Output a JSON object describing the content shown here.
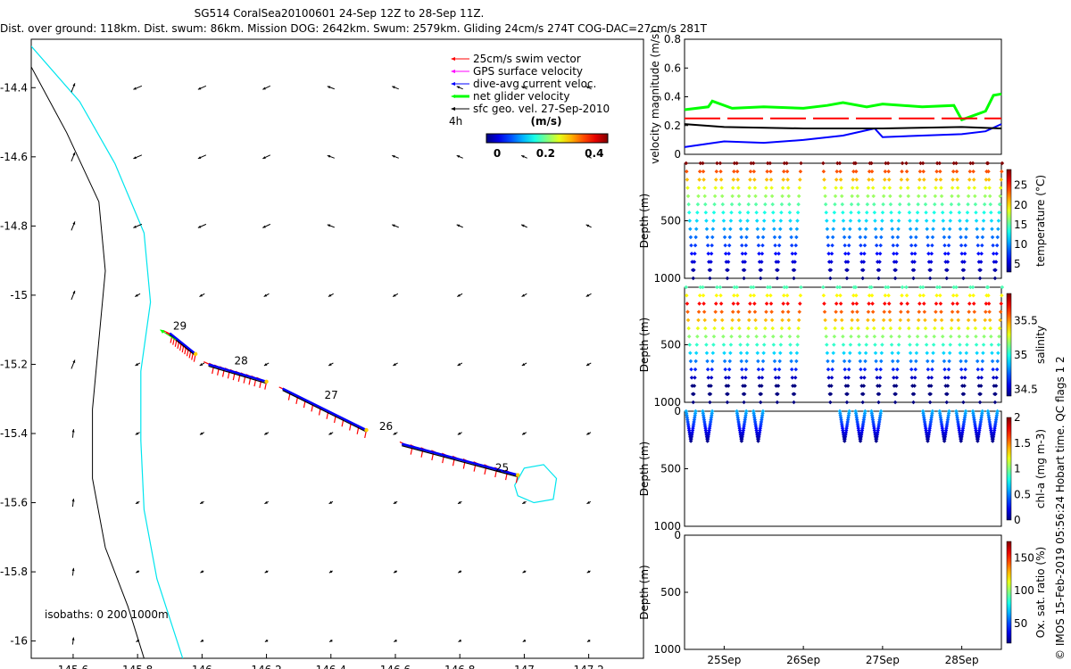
{
  "header": {
    "title": "SG514 CoralSea20100601 24-Sep 12Z to 28-Sep 11Z.",
    "subtitle": "Dist. over ground: 118km. Dist. swum: 86km. Mission DOG: 2642km. Swum: 2579km. Gliding 24cm/s 274T COG-DAC=27cm/s 281T"
  },
  "credit": "© IMOS 15-Feb-2019 05:56:24 Hobart time. QC flags 1  2",
  "colors": {
    "swim_vector": "#ff0000",
    "gps_surface": "#ff00ff",
    "dac": "#0000ff",
    "net_glider": "#00ff00",
    "sfc_geo": "#000000",
    "isobath_0": "#000000",
    "isobath_200": "#00e5ee"
  },
  "map": {
    "legend": [
      {
        "label": "25cm/s swim vector",
        "color": "#ff0000",
        "width": 1
      },
      {
        "label": "GPS surface velocity",
        "color": "#ff00ff",
        "width": 1
      },
      {
        "label": "dive-avg current veloc.",
        "color": "#0000ff",
        "width": 1
      },
      {
        "label": "net glider velocity",
        "color": "#00ff00",
        "width": 3
      },
      {
        "label": "sfc geo. vel. 27-Sep-2010",
        "color": "#000000",
        "width": 1
      }
    ],
    "colorbar": {
      "label": "(m/s)",
      "left_label": "4h",
      "ticks": [
        0,
        0.2,
        0.4
      ],
      "range": [
        0,
        0.5
      ]
    },
    "isobaths_label": "isobaths: 0   200  1000m",
    "day_labels": [
      {
        "text": "29",
        "lon": 145.91,
        "lat": -15.1
      },
      {
        "text": "28",
        "lon": 146.1,
        "lat": -15.2
      },
      {
        "text": "27",
        "lon": 146.38,
        "lat": -15.3
      },
      {
        "text": "26",
        "lon": 146.55,
        "lat": -15.39
      },
      {
        "text": "25",
        "lon": 146.91,
        "lat": -15.51
      }
    ],
    "track_segments": [
      {
        "from": [
          145.98,
          -15.17
        ],
        "to": [
          145.9,
          -15.11
        ]
      },
      {
        "from": [
          146.2,
          -15.25
        ],
        "to": [
          146.02,
          -15.2
        ]
      },
      {
        "from": [
          146.51,
          -15.39
        ],
        "to": [
          146.25,
          -15.27
        ]
      },
      {
        "from": [
          146.98,
          -15.52
        ],
        "to": [
          146.62,
          -15.43
        ]
      }
    ]
  },
  "chart_data": [
    {
      "type": "map",
      "xlim": [
        145.47,
        147.37
      ],
      "ylim": [
        -16.05,
        -14.26
      ],
      "xticks": [
        145.6,
        145.8,
        146,
        146.2,
        146.4,
        146.6,
        146.8,
        147,
        147.2
      ],
      "xtick_labels": [
        "145.6",
        "145.8",
        "146",
        "146.2",
        "146.4",
        "146.6",
        "146.8",
        "147",
        "147.2"
      ],
      "yticks": [
        -14.4,
        -14.6,
        -14.8,
        -15,
        -15.2,
        -15.4,
        -15.6,
        -15.8,
        -16
      ],
      "ytick_labels": [
        "-14.4",
        "-14.6",
        "-14.8",
        "-15",
        "-15.2",
        "-15.4",
        "-15.6",
        "-15.8",
        "-16"
      ],
      "isobath_0": [
        [
          145.47,
          -14.34
        ],
        [
          145.58,
          -14.53
        ],
        [
          145.68,
          -14.73
        ],
        [
          145.7,
          -14.93
        ],
        [
          145.68,
          -15.13
        ],
        [
          145.66,
          -15.33
        ],
        [
          145.66,
          -15.53
        ],
        [
          145.7,
          -15.73
        ],
        [
          145.77,
          -15.9
        ],
        [
          145.82,
          -16.05
        ]
      ],
      "isobath_200": [
        [
          145.47,
          -14.28
        ],
        [
          145.62,
          -14.44
        ],
        [
          145.73,
          -14.62
        ],
        [
          145.82,
          -14.82
        ],
        [
          145.84,
          -15.02
        ],
        [
          145.81,
          -15.22
        ],
        [
          145.81,
          -15.42
        ],
        [
          145.82,
          -15.62
        ],
        [
          145.86,
          -15.82
        ],
        [
          145.94,
          -16.05
        ]
      ],
      "eddy_200": [
        [
          146.97,
          -15.55
        ],
        [
          147.0,
          -15.5
        ],
        [
          147.06,
          -15.49
        ],
        [
          147.1,
          -15.53
        ],
        [
          147.09,
          -15.59
        ],
        [
          147.03,
          -15.6
        ],
        [
          146.98,
          -15.58
        ],
        [
          146.97,
          -15.55
        ]
      ]
    },
    {
      "type": "line",
      "ylabel": "velocity magnitude (m/s)",
      "ylim": [
        0,
        0.8
      ],
      "yticks": [
        0,
        0.2,
        0.4,
        0.6,
        0.8
      ],
      "xlim": [
        24.5,
        28.5
      ],
      "series": [
        {
          "color": "#00ff00",
          "x": [
            24.5,
            24.8,
            24.85,
            25.1,
            25.5,
            26.0,
            26.3,
            26.5,
            26.8,
            27.0,
            27.5,
            27.9,
            28.0,
            28.3,
            28.4,
            28.5
          ],
          "y": [
            0.31,
            0.33,
            0.37,
            0.32,
            0.33,
            0.32,
            0.34,
            0.36,
            0.33,
            0.35,
            0.33,
            0.34,
            0.24,
            0.3,
            0.41,
            0.42
          ]
        },
        {
          "color": "#0000ff",
          "x": [
            24.5,
            25.0,
            25.5,
            26.0,
            26.5,
            26.9,
            27.0,
            27.5,
            28.0,
            28.3,
            28.5
          ],
          "y": [
            0.05,
            0.09,
            0.08,
            0.1,
            0.13,
            0.18,
            0.12,
            0.13,
            0.14,
            0.16,
            0.21
          ]
        },
        {
          "color": "#000000",
          "x": [
            24.5,
            25.0,
            26.0,
            27.0,
            28.0,
            28.5
          ],
          "y": [
            0.21,
            0.19,
            0.18,
            0.18,
            0.19,
            0.18
          ]
        },
        {
          "color": "#ff0000",
          "dashed": true,
          "x": [
            24.5,
            25.85,
            26.45,
            27.2,
            27.5,
            28.5
          ],
          "y": [
            0.25,
            0.25,
            0.25,
            0.25,
            0.25,
            0.25
          ]
        }
      ]
    },
    {
      "type": "scatter",
      "field": "temperature",
      "cbar_label": "temperature (°C)",
      "ylabel": "Depth (m)",
      "ylim": [
        1000,
        0
      ],
      "yticks": [
        0,
        500,
        1000
      ],
      "ytick_labels": [
        "",
        "500",
        "1000"
      ],
      "crange": [
        3,
        29
      ],
      "cticks": [
        5,
        10,
        15,
        20,
        25
      ],
      "colormap": "jet",
      "dive_starts": [
        24.52,
        24.73,
        24.95,
        25.16,
        25.37,
        25.58,
        25.79,
        26.25,
        26.46,
        26.66,
        26.86,
        27.07,
        27.3,
        27.51,
        27.72,
        27.93,
        28.14,
        28.33
      ],
      "dive_width": 0.18,
      "max_depth": 1000
    },
    {
      "type": "scatter",
      "field": "salinity",
      "cbar_label": "salinity",
      "ylabel": "Depth (m)",
      "ylim": [
        1000,
        0
      ],
      "yticks": [
        0,
        500,
        1000
      ],
      "ytick_labels": [
        "",
        "500",
        "1000"
      ],
      "crange": [
        34.4,
        35.9
      ],
      "cticks": [
        34.5,
        35,
        35.5
      ],
      "colormap": "jet",
      "dive_starts": [
        24.52,
        24.73,
        24.95,
        25.16,
        25.37,
        25.58,
        25.79,
        26.25,
        26.46,
        26.66,
        26.86,
        27.07,
        27.3,
        27.51,
        27.72,
        27.93,
        28.14,
        28.33
      ],
      "dive_width": 0.18,
      "max_depth": 1000
    },
    {
      "type": "scatter",
      "field": "chl-a",
      "cbar_label": "chl-a (mg m-3)",
      "ylabel": "Depth (m)",
      "ylim": [
        1000,
        0
      ],
      "yticks": [
        0,
        500,
        1000
      ],
      "ytick_labels": [
        "0",
        "500",
        "1000"
      ],
      "crange": [
        0,
        2
      ],
      "cticks": [
        0,
        0.5,
        1,
        1.5,
        2
      ],
      "colormap": "jet",
      "dive_starts": [
        24.52,
        24.73,
        25.16,
        25.37,
        26.46,
        26.66,
        26.86,
        27.51,
        27.72,
        27.93,
        28.14,
        28.33
      ],
      "dive_width": 0.12,
      "max_depth": 260
    },
    {
      "type": "scatter",
      "field": "oxygen",
      "cbar_label": "Ox. sat. ratio (%)",
      "ylabel": "Depth (m)",
      "ylim": [
        1000,
        0
      ],
      "yticks": [
        0,
        500,
        1000
      ],
      "ytick_labels": [
        "0",
        "500",
        "1000"
      ],
      "crange": [
        20,
        175
      ],
      "cticks": [
        50,
        100,
        150
      ],
      "colormap": "jet",
      "dive_starts": [],
      "dive_width": 0,
      "max_depth": 0,
      "xticks": [
        25,
        26,
        27,
        28
      ],
      "xtick_labels": [
        "25Sep",
        "26Sep",
        "27Sep",
        "28Sep"
      ]
    }
  ]
}
